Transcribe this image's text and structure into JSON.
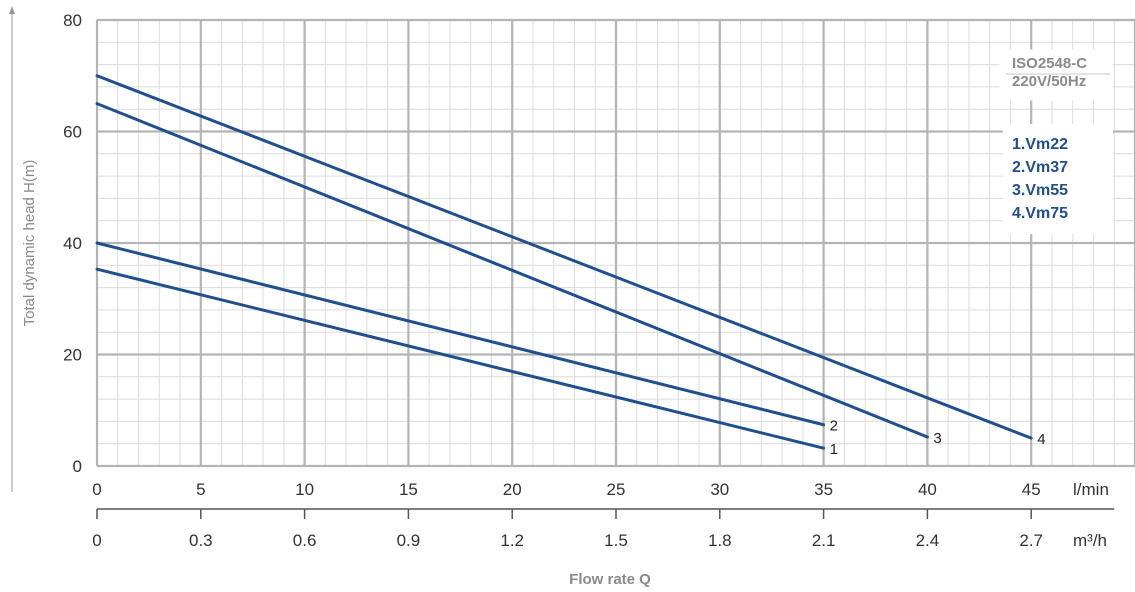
{
  "chart_data": {
    "type": "line",
    "ylabel": "Total dynamic head H(m)",
    "xlabel": "Flow rate Q",
    "x_unit": "l/min",
    "x2_unit": "m³/h",
    "xlim": [
      0,
      50
    ],
    "ylim": [
      0,
      80
    ],
    "x_ticks": [
      "0",
      "5",
      "10",
      "15",
      "20",
      "25",
      "30",
      "35",
      "40",
      "45"
    ],
    "x2_ticks": [
      "0",
      "0.3",
      "0.6",
      "0.9",
      "1.2",
      "1.5",
      "1.8",
      "2.1",
      "2.4",
      "2.7"
    ],
    "y_ticks": [
      "0",
      "20",
      "40",
      "60",
      "80"
    ],
    "grid": true,
    "info_box": [
      "ISO2548-C",
      "220V/50Hz"
    ],
    "legend": [
      "1.Vm22",
      "2.Vm37",
      "3.Vm55",
      "4.Vm75"
    ],
    "series": [
      {
        "name": "1",
        "x": [
          0,
          35
        ],
        "y": [
          35.3,
          3.2
        ]
      },
      {
        "name": "2",
        "x": [
          0,
          35
        ],
        "y": [
          40,
          7.4
        ]
      },
      {
        "name": "3",
        "x": [
          0,
          40
        ],
        "y": [
          65,
          5.2
        ]
      },
      {
        "name": "4",
        "x": [
          0,
          45
        ],
        "y": [
          70,
          5
        ]
      }
    ],
    "colors": {
      "line": "#1f4f8f",
      "grid": "#c8c8c8",
      "legend": "#1f4f8f"
    }
  }
}
